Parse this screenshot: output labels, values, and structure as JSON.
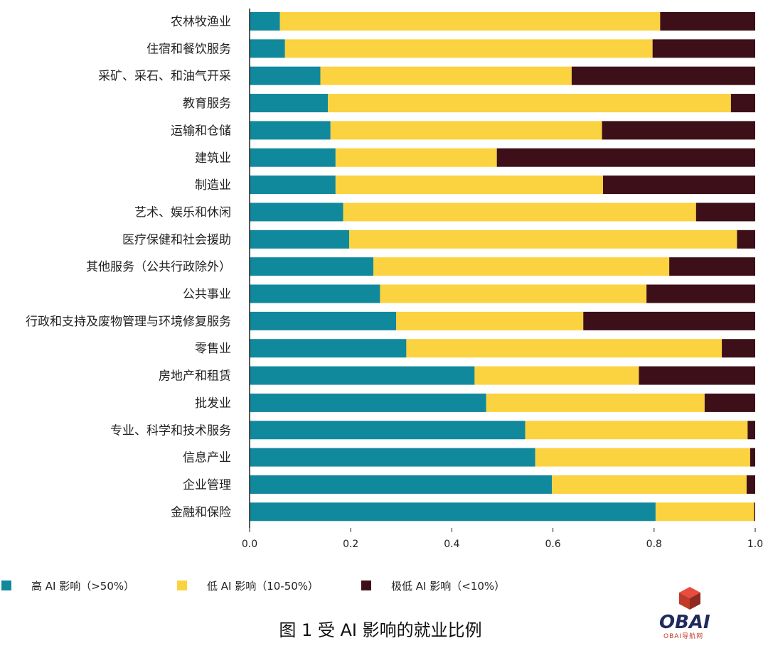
{
  "chart_data": {
    "type": "bar",
    "orientation": "horizontal",
    "stacked": true,
    "categories": [
      "农林牧渔业",
      "住宿和餐饮服务",
      "采矿、采石、和油气开采",
      "教育服务",
      "运输和仓储",
      "建筑业",
      "制造业",
      "艺术、娱乐和休闲",
      "医疗保健和社会援助",
      "其他服务（公共行政除外）",
      "公共事业",
      "行政和支持及废物管理与环境修复服务",
      "零售业",
      "房地产和租赁",
      "批发业",
      "专业、科学和技术服务",
      "信息产业",
      "企业管理",
      "金融和保险"
    ],
    "series": [
      {
        "name": "高 AI 影响（>50%）",
        "color": "#11899d",
        "values": [
          0.06,
          0.07,
          0.14,
          0.155,
          0.16,
          0.17,
          0.17,
          0.185,
          0.197,
          0.245,
          0.258,
          0.29,
          0.31,
          0.445,
          0.468,
          0.545,
          0.565,
          0.598,
          0.803
        ]
      },
      {
        "name": "低 AI 影响（10-50%）",
        "color": "#fbd23f",
        "values": [
          0.752,
          0.727,
          0.497,
          0.797,
          0.537,
          0.319,
          0.529,
          0.698,
          0.767,
          0.585,
          0.527,
          0.37,
          0.624,
          0.325,
          0.432,
          0.44,
          0.425,
          0.385,
          0.195
        ]
      },
      {
        "name": "极低 AI 影响（<10%）",
        "color": "#3d1019",
        "values": [
          0.188,
          0.203,
          0.363,
          0.048,
          0.303,
          0.511,
          0.301,
          0.117,
          0.036,
          0.17,
          0.215,
          0.34,
          0.066,
          0.23,
          0.1,
          0.015,
          0.01,
          0.017,
          0.002
        ]
      }
    ],
    "xlim": [
      0,
      1.0
    ],
    "xticks": [
      "0.0",
      "0.2",
      "0.4",
      "0.6",
      "0.8",
      "1.0"
    ],
    "grid": false,
    "legend_position": "bottom",
    "caption": "图 1 受 AI 影响的就业比例"
  },
  "logo": {
    "name": "OBAI",
    "sub": "OBAI导航网"
  }
}
